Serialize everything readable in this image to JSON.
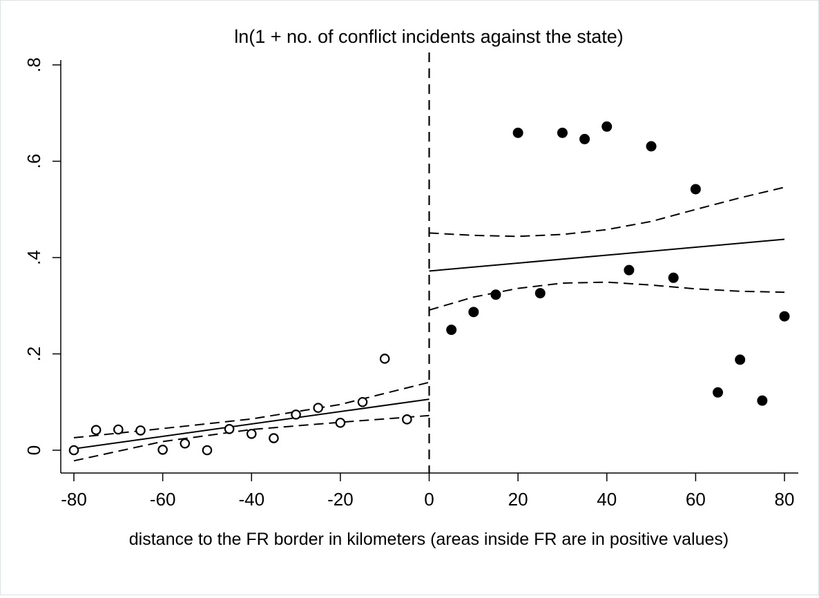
{
  "chart_data": {
    "type": "scatter",
    "title": "ln(1 + no. of conflict incidents against the state)",
    "xlabel": "distance to the FR border in kilometers (areas inside FR are in positive values)",
    "ylabel": "",
    "xlim": [
      -80,
      80
    ],
    "ylim": [
      0,
      0.8
    ],
    "xticks": [
      -80,
      -60,
      -40,
      -20,
      0,
      20,
      40,
      60,
      80
    ],
    "xtick_labels": [
      "-80",
      "-60",
      "-40",
      "-20",
      "0",
      "20",
      "40",
      "60",
      "80"
    ],
    "yticks": [
      0,
      0.2,
      0.4,
      0.6,
      0.8
    ],
    "ytick_labels": [
      "0",
      ".2",
      ".4",
      ".6",
      ".8"
    ],
    "cutoff_x": 0,
    "series": [
      {
        "name": "outside FR (bin means)",
        "marker": "hollow-circle",
        "x": [
          -80,
          -75,
          -70,
          -65,
          -60,
          -55,
          -50,
          -45,
          -40,
          -35,
          -30,
          -25,
          -20,
          -15,
          -10,
          -5
        ],
        "y": [
          0.0,
          0.042,
          0.043,
          0.041,
          0.001,
          0.014,
          0.0,
          0.044,
          0.034,
          0.025,
          0.074,
          0.088,
          0.057,
          0.1,
          0.19,
          0.064
        ]
      },
      {
        "name": "inside FR (bin means)",
        "marker": "filled-circle",
        "x": [
          5,
          10,
          15,
          20,
          25,
          30,
          35,
          40,
          45,
          50,
          55,
          60,
          65,
          70,
          75,
          80
        ],
        "y": [
          0.25,
          0.287,
          0.323,
          0.659,
          0.326,
          0.659,
          0.646,
          0.672,
          0.374,
          0.631,
          0.358,
          0.542,
          0.12,
          0.188,
          0.103,
          0.278
        ]
      },
      {
        "name": "fit left",
        "style": "solid",
        "x": [
          -80,
          0
        ],
        "y": [
          0.003,
          0.106
        ]
      },
      {
        "name": "CI upper left",
        "style": "dashed",
        "x": [
          -80,
          -60,
          -40,
          -20,
          0
        ],
        "y": [
          0.026,
          0.045,
          0.065,
          0.095,
          0.141
        ]
      },
      {
        "name": "CI lower left",
        "style": "dashed",
        "x": [
          -80,
          -60,
          -40,
          -20,
          0
        ],
        "y": [
          -0.022,
          0.018,
          0.043,
          0.058,
          0.072
        ]
      },
      {
        "name": "fit right",
        "style": "solid",
        "x": [
          0,
          80
        ],
        "y": [
          0.372,
          0.438
        ]
      },
      {
        "name": "CI upper right",
        "style": "dashed",
        "x": [
          0,
          10,
          20,
          30,
          40,
          50,
          60,
          70,
          80
        ],
        "y": [
          0.451,
          0.446,
          0.444,
          0.448,
          0.458,
          0.475,
          0.5,
          0.524,
          0.546
        ]
      },
      {
        "name": "CI lower right",
        "style": "dashed",
        "x": [
          0,
          10,
          20,
          30,
          40,
          50,
          60,
          70,
          80
        ],
        "y": [
          0.291,
          0.318,
          0.336,
          0.347,
          0.349,
          0.343,
          0.335,
          0.33,
          0.328
        ]
      }
    ]
  }
}
